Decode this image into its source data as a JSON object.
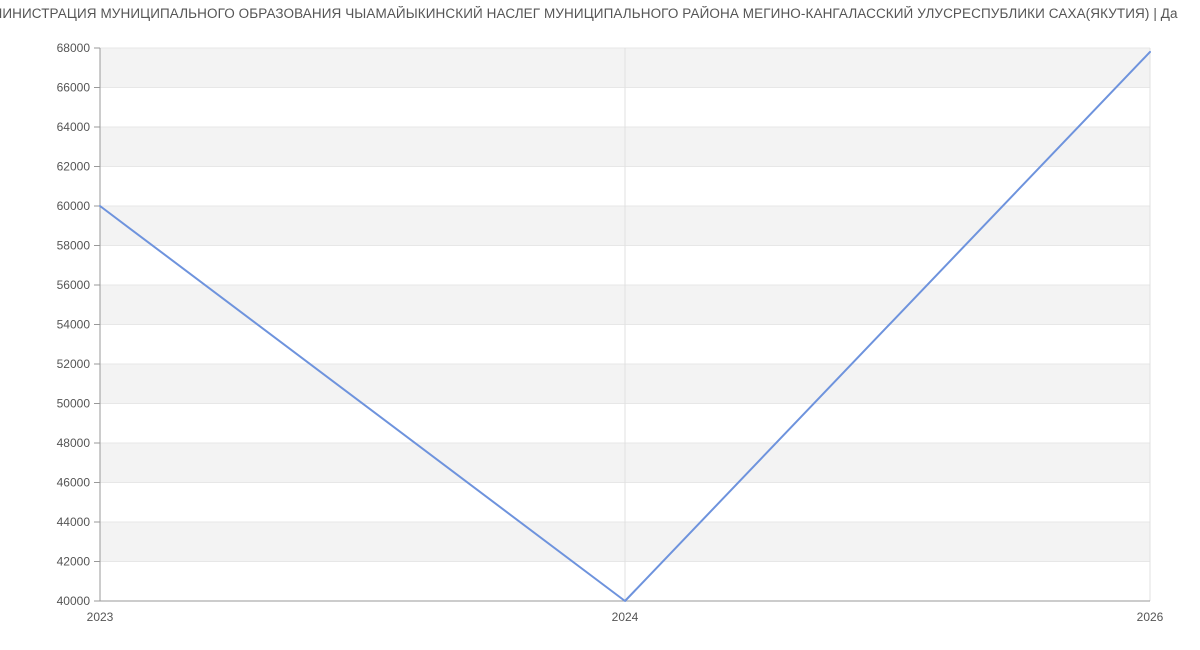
{
  "page": {
    "background": "#ffffff",
    "title": {
      "visible_text": "МИНИСТРАЦИЯ МУНИЦИПАЛЬНОГО ОБРАЗОВАНИЯ ЧЫАМАЙЫКИНСКИЙ НАСЛЕГ МУНИЦИПАЛЬНОГО РАЙОНА МЕГИНО-КАНГАЛАССКИЙ УЛУСРЕСПУБЛИКИ САХА(ЯКУТИЯ) | Да"
    }
  },
  "chart_data": {
    "type": "line",
    "categories": [
      "2023",
      "2024",
      "2026"
    ],
    "values": [
      60000,
      40000,
      67800
    ],
    "xlabel": "",
    "ylabel": "",
    "ylim": [
      40000,
      68000
    ],
    "ytick_step": 2000,
    "ytick_labels": [
      "40000",
      "42000",
      "44000",
      "46000",
      "48000",
      "50000",
      "52000",
      "54000",
      "56000",
      "58000",
      "60000",
      "62000",
      "64000",
      "66000",
      "68000"
    ],
    "grid": "alternating horizontal bands, vertical gridlines at categories",
    "legend": "none",
    "markers": "none",
    "colors": {
      "line": "#6e93dd",
      "band": "#f3f3f3",
      "grid_h": "#e7e7e7",
      "grid_v": "#e0e0e0",
      "axis": "#999999",
      "tick_label": "#555555",
      "title_text": "#555555"
    }
  }
}
